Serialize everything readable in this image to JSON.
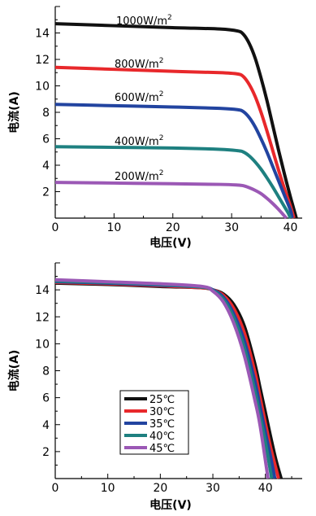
{
  "chart_data": [
    {
      "type": "line",
      "title": "",
      "xlabel": "电压(V)",
      "ylabel": "电流(A)",
      "xlim": [
        0,
        42
      ],
      "ylim": [
        0,
        16
      ],
      "xticks": [
        0,
        10,
        20,
        30,
        40
      ],
      "yticks": [
        2,
        4,
        6,
        8,
        10,
        12,
        14
      ],
      "grid": false,
      "legend": "none",
      "series": [
        {
          "name": "1000W/m²",
          "label_text": "1000W/m",
          "label_sup": "2",
          "color": "#111111",
          "x": [
            0,
            10,
            20,
            28,
            31,
            32,
            33,
            34,
            35,
            36,
            37,
            38,
            39,
            40,
            40.5,
            41
          ],
          "y": [
            14.7,
            14.55,
            14.4,
            14.3,
            14.15,
            13.9,
            13.2,
            12.1,
            10.6,
            8.9,
            7.0,
            5.1,
            3.3,
            1.6,
            0.8,
            0
          ]
        },
        {
          "name": "800W/m²",
          "label_text": "800W/m",
          "label_sup": "2",
          "color": "#e8282b",
          "x": [
            0,
            10,
            20,
            28,
            31,
            32,
            33,
            34,
            35,
            36,
            37,
            38,
            39,
            40,
            40.6
          ],
          "y": [
            11.4,
            11.25,
            11.1,
            11.0,
            10.9,
            10.7,
            10.1,
            9.2,
            8.0,
            6.6,
            5.1,
            3.6,
            2.2,
            0.9,
            0
          ]
        },
        {
          "name": "600W/m²",
          "label_text": "600W/m",
          "label_sup": "2",
          "color": "#2244a0",
          "x": [
            0,
            10,
            20,
            28,
            31,
            32,
            33,
            34,
            35,
            36,
            37,
            38,
            39,
            40,
            40.3
          ],
          "y": [
            8.6,
            8.5,
            8.4,
            8.3,
            8.2,
            8.05,
            7.6,
            6.9,
            6.0,
            5.0,
            3.9,
            2.8,
            1.7,
            0.6,
            0
          ]
        },
        {
          "name": "400W/m²",
          "label_text": "400W/m",
          "label_sup": "2",
          "color": "#1e8080",
          "x": [
            0,
            10,
            20,
            28,
            31,
            32,
            33,
            34,
            35,
            36,
            37,
            38,
            39,
            39.6,
            40
          ],
          "y": [
            5.4,
            5.35,
            5.3,
            5.2,
            5.1,
            5.0,
            4.7,
            4.25,
            3.7,
            3.05,
            2.35,
            1.6,
            0.85,
            0.4,
            0
          ]
        },
        {
          "name": "200W/m²",
          "label_text": "200W/m",
          "label_sup": "2",
          "color": "#9b58b5",
          "x": [
            0,
            10,
            20,
            28,
            31,
            32,
            33,
            34,
            35,
            36,
            37,
            38,
            38.8,
            39.3
          ],
          "y": [
            2.7,
            2.65,
            2.6,
            2.55,
            2.5,
            2.45,
            2.3,
            2.1,
            1.85,
            1.5,
            1.1,
            0.65,
            0.25,
            0
          ]
        }
      ]
    },
    {
      "type": "line",
      "title": "",
      "xlabel": "电压(V)",
      "ylabel": "电流(A)",
      "xlim": [
        0,
        47
      ],
      "ylim": [
        0,
        16
      ],
      "xticks": [
        0,
        10,
        20,
        30,
        40
      ],
      "yticks": [
        2,
        4,
        6,
        8,
        10,
        12,
        14
      ],
      "grid": false,
      "legend": "lower-left, inside plot",
      "series": [
        {
          "name": "25℃",
          "color": "#111111",
          "x": [
            0,
            10,
            20,
            28,
            30,
            32,
            34,
            36,
            38,
            39,
            40,
            41,
            42,
            43
          ],
          "y": [
            14.5,
            14.4,
            14.25,
            14.15,
            14.0,
            13.7,
            12.9,
            11.3,
            8.5,
            6.7,
            4.9,
            3.1,
            1.4,
            0
          ]
        },
        {
          "name": "30℃",
          "color": "#e8282b",
          "x": [
            0,
            10,
            20,
            28,
            30,
            32,
            34,
            36,
            38,
            39,
            40,
            41,
            42.5
          ],
          "y": [
            14.55,
            14.45,
            14.3,
            14.15,
            14.0,
            13.6,
            12.6,
            10.8,
            7.9,
            6.0,
            4.1,
            2.3,
            0
          ]
        },
        {
          "name": "35℃",
          "color": "#2244a0",
          "x": [
            0,
            10,
            20,
            28,
            30,
            32,
            34,
            36,
            38,
            39,
            40,
            41,
            41.8
          ],
          "y": [
            14.6,
            14.5,
            14.35,
            14.2,
            14.0,
            13.45,
            12.2,
            10.2,
            7.2,
            5.3,
            3.4,
            1.6,
            0
          ]
        },
        {
          "name": "40℃",
          "color": "#1e8080",
          "x": [
            0,
            10,
            20,
            28,
            30,
            32,
            34,
            36,
            38,
            39,
            40,
            41.2
          ],
          "y": [
            14.65,
            14.55,
            14.4,
            14.2,
            13.95,
            13.3,
            11.9,
            9.7,
            6.5,
            4.6,
            2.7,
            0
          ]
        },
        {
          "name": "45℃",
          "color": "#9b58b5",
          "x": [
            0,
            10,
            20,
            28,
            30,
            32,
            34,
            36,
            38,
            39,
            40.5
          ],
          "y": [
            14.75,
            14.6,
            14.45,
            14.25,
            13.9,
            13.1,
            11.5,
            9.1,
            5.8,
            3.9,
            0
          ]
        }
      ]
    }
  ]
}
